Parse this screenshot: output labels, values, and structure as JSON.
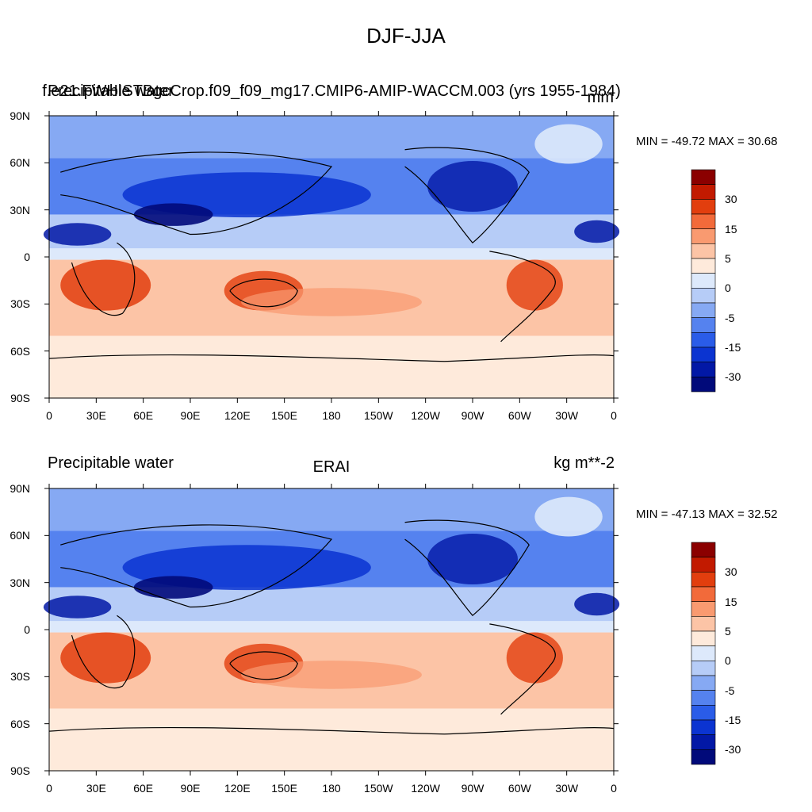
{
  "figure": {
    "title": "DJF-JJA"
  },
  "panels": [
    {
      "id": "model",
      "left_label": "Precipitable water",
      "center_label": "f.e21.FWHISTBgcCrop.f09_f09_mg17.CMIP6-AMIP-WACCM.003 (yrs 1955-1984)",
      "right_label": "mm",
      "min_max_text": "MIN = -49.72 MAX =  30.68"
    },
    {
      "id": "obs",
      "left_label": "Precipitable water",
      "center_label": "ERAI",
      "right_label": "kg m**-2",
      "min_max_text": "MIN = -47.13 MAX =  32.52"
    }
  ],
  "axes": {
    "y_ticks": [
      "90N",
      "60N",
      "30N",
      "0",
      "30S",
      "60S",
      "90S"
    ],
    "x_ticks": [
      "0",
      "30E",
      "60E",
      "90E",
      "120E",
      "150E",
      "180",
      "150W",
      "120W",
      "90W",
      "60W",
      "30W",
      "0"
    ]
  },
  "colorbar": {
    "labels": [
      "30",
      "15",
      "5",
      "0",
      "-5",
      "-15",
      "-30"
    ],
    "colors": [
      "#8b0000",
      "#c21a00",
      "#e23e0e",
      "#f26a3a",
      "#f99a70",
      "#fcc4a6",
      "#feeadb",
      "#dde9fb",
      "#b6ccf7",
      "#86a9f3",
      "#5582ef",
      "#2a5ce8",
      "#0b34d1",
      "#0218a6",
      "#010a7a"
    ]
  },
  "palette": {
    "ocean_blue": "#86a9f3",
    "deep_blue": "#0b34d1",
    "warm": "#fcc4a6",
    "hot": "#e23e0e"
  }
}
